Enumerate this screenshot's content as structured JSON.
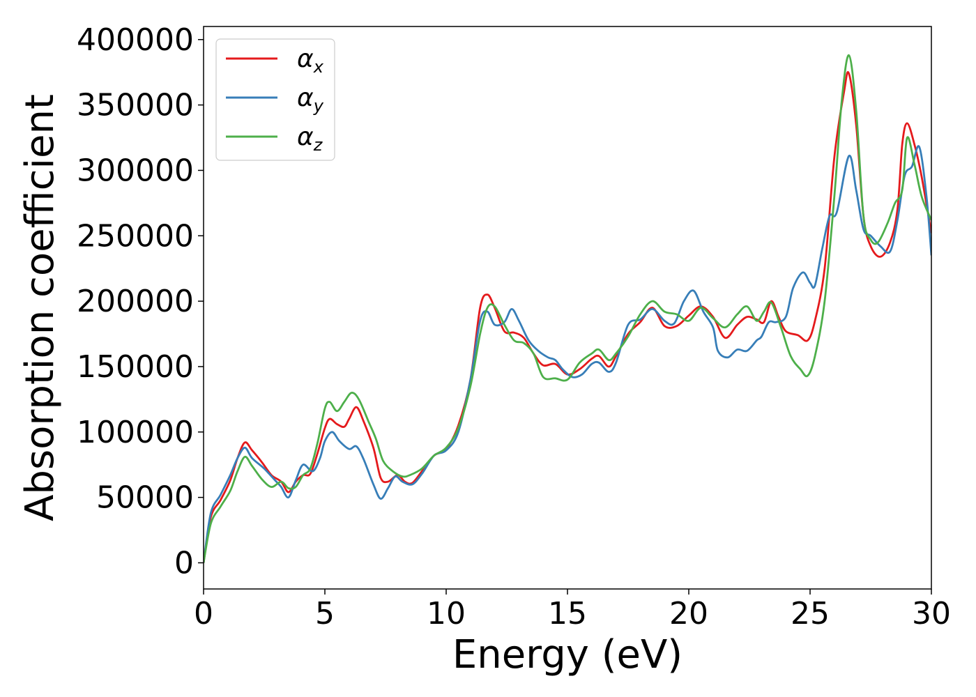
{
  "chart_data": {
    "type": "line",
    "xlabel": "Energy (eV)",
    "ylabel": "Absorption coefficient",
    "xlim": [
      0,
      30
    ],
    "ylim": [
      -20000,
      410000
    ],
    "xticks": [
      0,
      5,
      10,
      15,
      20,
      25,
      30
    ],
    "xtick_labels": [
      "0",
      "5",
      "10",
      "15",
      "20",
      "25",
      "30"
    ],
    "yticks": [
      0,
      50000,
      100000,
      150000,
      200000,
      250000,
      300000,
      350000,
      400000
    ],
    "ytick_labels": [
      "0",
      "50000",
      "100000",
      "150000",
      "200000",
      "250000",
      "300000",
      "350000",
      "400000"
    ],
    "grid": false,
    "legend_position": "top-left",
    "series": [
      {
        "name": "α_x",
        "base": "α",
        "sub": "x",
        "color": "#e41a1c",
        "points": [
          [
            0,
            0
          ],
          [
            0.3,
            35000
          ],
          [
            0.7,
            48000
          ],
          [
            1.1,
            63000
          ],
          [
            1.4,
            80000
          ],
          [
            1.7,
            92000
          ],
          [
            2.0,
            86000
          ],
          [
            2.4,
            77000
          ],
          [
            2.8,
            67000
          ],
          [
            3.2,
            62000
          ],
          [
            3.5,
            54000
          ],
          [
            3.8,
            62000
          ],
          [
            4.1,
            67000
          ],
          [
            4.4,
            68000
          ],
          [
            4.7,
            84000
          ],
          [
            5.0,
            103000
          ],
          [
            5.2,
            110000
          ],
          [
            5.5,
            106000
          ],
          [
            5.8,
            104000
          ],
          [
            6.0,
            110000
          ],
          [
            6.3,
            119000
          ],
          [
            6.6,
            108000
          ],
          [
            7.0,
            88000
          ],
          [
            7.3,
            65000
          ],
          [
            7.6,
            62000
          ],
          [
            8.0,
            67000
          ],
          [
            8.3,
            62000
          ],
          [
            8.6,
            61000
          ],
          [
            9.0,
            70000
          ],
          [
            9.5,
            82000
          ],
          [
            10.0,
            87000
          ],
          [
            10.5,
            105000
          ],
          [
            11.0,
            140000
          ],
          [
            11.4,
            195000
          ],
          [
            11.7,
            205000
          ],
          [
            12.0,
            195000
          ],
          [
            12.4,
            177000
          ],
          [
            12.8,
            176000
          ],
          [
            13.2,
            172000
          ],
          [
            13.6,
            160000
          ],
          [
            14.0,
            151000
          ],
          [
            14.5,
            152000
          ],
          [
            15.0,
            144000
          ],
          [
            15.5,
            148000
          ],
          [
            16.0,
            156000
          ],
          [
            16.3,
            158000
          ],
          [
            16.7,
            150000
          ],
          [
            17.0,
            158000
          ],
          [
            17.5,
            175000
          ],
          [
            18.0,
            184000
          ],
          [
            18.5,
            195000
          ],
          [
            19.0,
            181000
          ],
          [
            19.5,
            181000
          ],
          [
            20.0,
            189000
          ],
          [
            20.5,
            196000
          ],
          [
            21.0,
            188000
          ],
          [
            21.5,
            172000
          ],
          [
            22.0,
            182000
          ],
          [
            22.4,
            188000
          ],
          [
            22.8,
            186000
          ],
          [
            23.1,
            184000
          ],
          [
            23.4,
            200000
          ],
          [
            23.7,
            188000
          ],
          [
            24.0,
            177000
          ],
          [
            24.5,
            174000
          ],
          [
            24.9,
            170000
          ],
          [
            25.2,
            185000
          ],
          [
            25.6,
            225000
          ],
          [
            26.0,
            310000
          ],
          [
            26.4,
            360000
          ],
          [
            26.6,
            374000
          ],
          [
            26.9,
            335000
          ],
          [
            27.2,
            265000
          ],
          [
            27.5,
            242000
          ],
          [
            27.9,
            234000
          ],
          [
            28.3,
            245000
          ],
          [
            28.6,
            270000
          ],
          [
            28.8,
            320000
          ],
          [
            29.0,
            336000
          ],
          [
            29.3,
            320000
          ],
          [
            29.6,
            295000
          ],
          [
            30.0,
            252000
          ]
        ]
      },
      {
        "name": "α_y",
        "base": "α",
        "sub": "y",
        "color": "#377eb8",
        "points": [
          [
            0,
            0
          ],
          [
            0.3,
            38000
          ],
          [
            0.7,
            52000
          ],
          [
            1.1,
            67000
          ],
          [
            1.4,
            80000
          ],
          [
            1.7,
            88000
          ],
          [
            2.0,
            80000
          ],
          [
            2.5,
            72000
          ],
          [
            3.0,
            62000
          ],
          [
            3.2,
            58000
          ],
          [
            3.5,
            50000
          ],
          [
            3.8,
            63000
          ],
          [
            4.1,
            75000
          ],
          [
            4.5,
            70000
          ],
          [
            4.8,
            80000
          ],
          [
            5.0,
            93000
          ],
          [
            5.3,
            100000
          ],
          [
            5.6,
            93000
          ],
          [
            6.0,
            87000
          ],
          [
            6.3,
            89000
          ],
          [
            6.6,
            79000
          ],
          [
            7.0,
            60000
          ],
          [
            7.3,
            49000
          ],
          [
            7.6,
            57000
          ],
          [
            7.9,
            66000
          ],
          [
            8.2,
            62000
          ],
          [
            8.6,
            60000
          ],
          [
            9.0,
            68000
          ],
          [
            9.5,
            82000
          ],
          [
            10.0,
            86000
          ],
          [
            10.5,
            100000
          ],
          [
            11.0,
            140000
          ],
          [
            11.4,
            185000
          ],
          [
            11.7,
            192000
          ],
          [
            12.0,
            182000
          ],
          [
            12.4,
            184000
          ],
          [
            12.7,
            194000
          ],
          [
            13.0,
            185000
          ],
          [
            13.4,
            170000
          ],
          [
            13.8,
            162000
          ],
          [
            14.2,
            157000
          ],
          [
            14.5,
            155000
          ],
          [
            14.8,
            148000
          ],
          [
            15.2,
            142000
          ],
          [
            15.6,
            144000
          ],
          [
            16.0,
            152000
          ],
          [
            16.3,
            153000
          ],
          [
            16.7,
            146000
          ],
          [
            17.0,
            153000
          ],
          [
            17.5,
            182000
          ],
          [
            18.0,
            186000
          ],
          [
            18.5,
            194000
          ],
          [
            19.0,
            185000
          ],
          [
            19.4,
            183000
          ],
          [
            19.8,
            200000
          ],
          [
            20.2,
            208000
          ],
          [
            20.6,
            192000
          ],
          [
            21.0,
            180000
          ],
          [
            21.2,
            162000
          ],
          [
            21.6,
            157000
          ],
          [
            22.0,
            163000
          ],
          [
            22.4,
            162000
          ],
          [
            22.8,
            170000
          ],
          [
            23.0,
            173000
          ],
          [
            23.3,
            184000
          ],
          [
            23.6,
            184000
          ],
          [
            24.0,
            188000
          ],
          [
            24.3,
            210000
          ],
          [
            24.7,
            222000
          ],
          [
            25.0,
            214000
          ],
          [
            25.2,
            212000
          ],
          [
            25.5,
            240000
          ],
          [
            25.8,
            265000
          ],
          [
            26.1,
            268000
          ],
          [
            26.6,
            311000
          ],
          [
            26.9,
            285000
          ],
          [
            27.2,
            255000
          ],
          [
            27.5,
            250000
          ],
          [
            27.9,
            242000
          ],
          [
            28.3,
            238000
          ],
          [
            28.6,
            262000
          ],
          [
            28.9,
            296000
          ],
          [
            29.2,
            303000
          ],
          [
            29.5,
            318000
          ],
          [
            29.8,
            280000
          ],
          [
            30.0,
            235000
          ]
        ]
      },
      {
        "name": "α_z",
        "base": "α",
        "sub": "z",
        "color": "#4daf4a",
        "points": [
          [
            0,
            0
          ],
          [
            0.3,
            30000
          ],
          [
            0.7,
            43000
          ],
          [
            1.1,
            55000
          ],
          [
            1.4,
            70000
          ],
          [
            1.7,
            81000
          ],
          [
            2.0,
            74000
          ],
          [
            2.4,
            64000
          ],
          [
            2.8,
            58000
          ],
          [
            3.2,
            62000
          ],
          [
            3.5,
            57000
          ],
          [
            3.8,
            58000
          ],
          [
            4.1,
            67000
          ],
          [
            4.4,
            72000
          ],
          [
            4.7,
            92000
          ],
          [
            5.0,
            118000
          ],
          [
            5.2,
            123000
          ],
          [
            5.5,
            116000
          ],
          [
            5.8,
            123000
          ],
          [
            6.1,
            130000
          ],
          [
            6.4,
            125000
          ],
          [
            6.8,
            108000
          ],
          [
            7.1,
            95000
          ],
          [
            7.4,
            78000
          ],
          [
            7.8,
            70000
          ],
          [
            8.2,
            66000
          ],
          [
            8.5,
            67000
          ],
          [
            9.0,
            72000
          ],
          [
            9.5,
            82000
          ],
          [
            10.0,
            88000
          ],
          [
            10.5,
            103000
          ],
          [
            11.0,
            135000
          ],
          [
            11.4,
            175000
          ],
          [
            11.7,
            195000
          ],
          [
            12.0,
            196000
          ],
          [
            12.4,
            182000
          ],
          [
            12.8,
            170000
          ],
          [
            13.2,
            168000
          ],
          [
            13.6,
            160000
          ],
          [
            14.0,
            142000
          ],
          [
            14.5,
            141000
          ],
          [
            15.0,
            140000
          ],
          [
            15.5,
            153000
          ],
          [
            16.0,
            160000
          ],
          [
            16.3,
            163000
          ],
          [
            16.7,
            155000
          ],
          [
            17.0,
            160000
          ],
          [
            17.5,
            173000
          ],
          [
            18.0,
            190000
          ],
          [
            18.5,
            200000
          ],
          [
            19.0,
            192000
          ],
          [
            19.5,
            190000
          ],
          [
            20.0,
            185000
          ],
          [
            20.5,
            195000
          ],
          [
            21.0,
            187000
          ],
          [
            21.5,
            180000
          ],
          [
            22.0,
            190000
          ],
          [
            22.4,
            196000
          ],
          [
            22.8,
            185000
          ],
          [
            23.1,
            192000
          ],
          [
            23.4,
            199000
          ],
          [
            23.8,
            180000
          ],
          [
            24.2,
            158000
          ],
          [
            24.6,
            148000
          ],
          [
            24.9,
            143000
          ],
          [
            25.2,
            158000
          ],
          [
            25.6,
            200000
          ],
          [
            26.0,
            280000
          ],
          [
            26.3,
            352000
          ],
          [
            26.6,
            388000
          ],
          [
            26.9,
            346000
          ],
          [
            27.2,
            265000
          ],
          [
            27.5,
            247000
          ],
          [
            27.8,
            245000
          ],
          [
            28.2,
            260000
          ],
          [
            28.5,
            275000
          ],
          [
            28.8,
            285000
          ],
          [
            29.0,
            325000
          ],
          [
            29.3,
            305000
          ],
          [
            29.6,
            280000
          ],
          [
            30.0,
            262000
          ]
        ]
      }
    ]
  }
}
